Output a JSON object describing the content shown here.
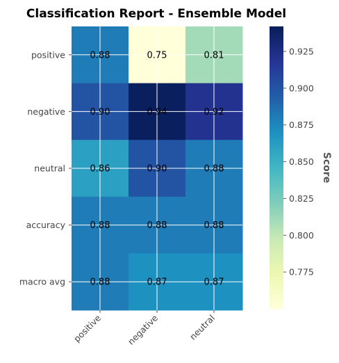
{
  "chart_data": {
    "type": "heatmap",
    "title": "Classification Report - Ensemble Model",
    "rows": [
      "positive",
      "negative",
      "neutral",
      "accuracy",
      "macro avg"
    ],
    "columns": [
      "positive",
      "negative",
      "neutral"
    ],
    "values": [
      [
        0.88,
        0.75,
        0.81
      ],
      [
        0.9,
        0.94,
        0.92
      ],
      [
        0.86,
        0.9,
        0.88
      ],
      [
        0.88,
        0.88,
        0.88
      ],
      [
        0.88,
        0.87,
        0.87
      ]
    ],
    "cell_labels": [
      [
        "0.88",
        "0.75",
        "0.81"
      ],
      [
        "0.90",
        "0.94",
        "0.92"
      ],
      [
        "0.86",
        "0.90",
        "0.88"
      ],
      [
        "0.88",
        "0.88",
        "0.88"
      ],
      [
        "0.88",
        "0.87",
        "0.87"
      ]
    ],
    "colormap": "YlGnBu",
    "vmin": 0.75,
    "vmax": 0.942,
    "grid": true,
    "colorbar": {
      "label": "Score",
      "ticks": [
        0.775,
        0.8,
        0.825,
        0.85,
        0.875,
        0.9,
        0.925
      ],
      "tick_labels": [
        "0.775",
        "0.800",
        "0.825",
        "0.850",
        "0.875",
        "0.900",
        "0.925"
      ]
    }
  }
}
